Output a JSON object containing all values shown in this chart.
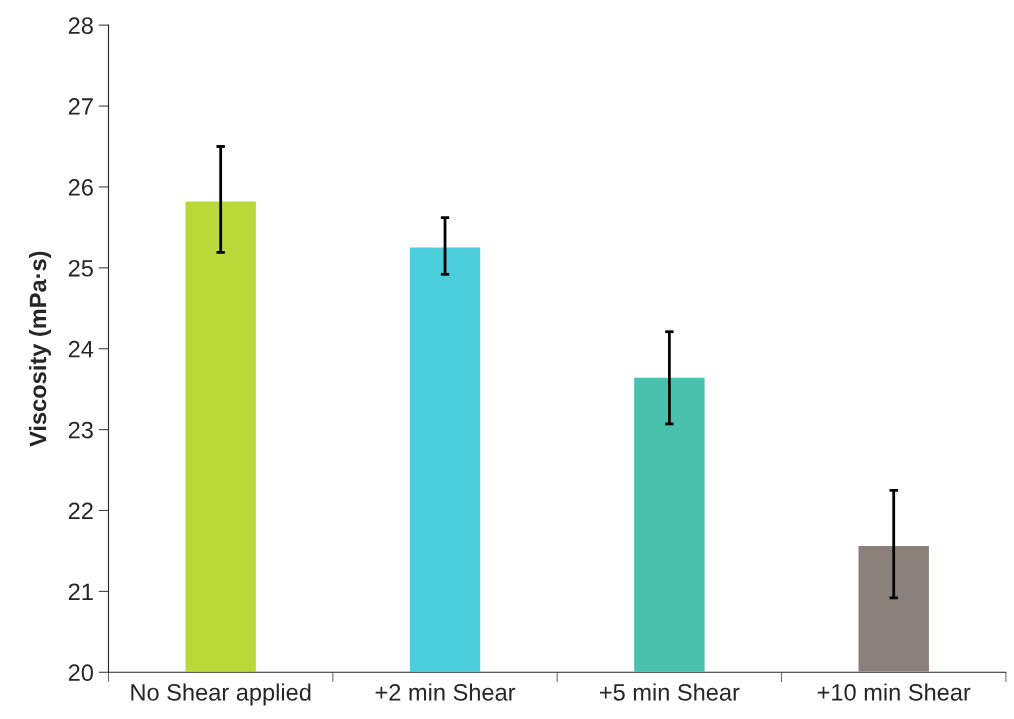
{
  "chart_data": {
    "type": "bar",
    "ylabel": "Viscosity (mPa·s)",
    "categories": [
      "No Shear applied",
      "+2 min Shear",
      "+5 min Shear",
      "+10 min Shear"
    ],
    "values": [
      25.83,
      25.26,
      23.65,
      21.57
    ],
    "colors": [
      "#bbd83a",
      "#4ccddc",
      "#4ac1ad",
      "#8a817d"
    ],
    "errors": [
      [
        25.19,
        26.5
      ],
      [
        24.92,
        25.62
      ],
      [
        23.07,
        24.21
      ],
      [
        20.92,
        22.25
      ]
    ],
    "ylim": [
      20,
      28
    ],
    "yticks": [
      20,
      21,
      22,
      23,
      24,
      25,
      26,
      27,
      28
    ],
    "grid": false,
    "legend": false
  }
}
